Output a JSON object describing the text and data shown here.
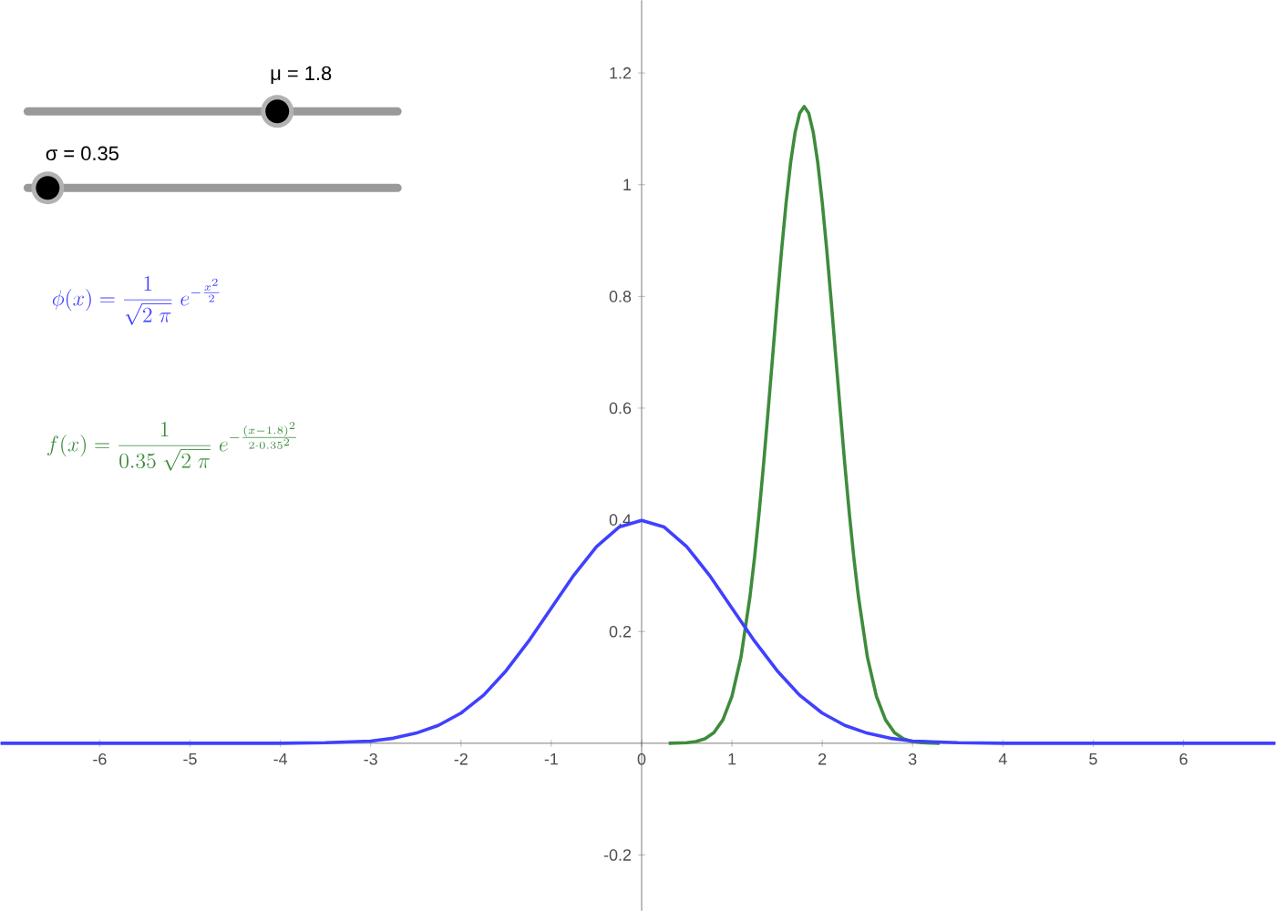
{
  "chart_data": {
    "type": "line",
    "xlim": [
      -7.1,
      7.02
    ],
    "ylim": [
      -0.3,
      1.33
    ],
    "xticks": [
      -6,
      -5,
      -4,
      -3,
      -2,
      -1,
      0,
      1,
      2,
      3,
      4,
      5,
      6
    ],
    "yticks": [
      -0.2,
      0.2,
      0.4,
      0.6,
      0.8,
      1,
      1.2
    ],
    "grid": false,
    "marker": "none",
    "line_style": "solid",
    "series": [
      {
        "color": "#4040ff",
        "x": [
          -7.1,
          -4,
          -3.5,
          -3,
          -2.75,
          -2.5,
          -2.25,
          -2,
          -1.75,
          -1.5,
          -1.25,
          -1,
          -0.75,
          -0.5,
          -0.25,
          0,
          0.25,
          0.5,
          0.75,
          1,
          1.25,
          1.5,
          1.75,
          2,
          2.25,
          2.5,
          2.75,
          3,
          3.5,
          4,
          7.02
        ],
        "values": [
          0,
          0,
          0.001,
          0.004,
          0.009,
          0.018,
          0.032,
          0.054,
          0.086,
          0.13,
          0.183,
          0.242,
          0.301,
          0.352,
          0.387,
          0.399,
          0.387,
          0.352,
          0.301,
          0.242,
          0.183,
          0.13,
          0.086,
          0.054,
          0.032,
          0.018,
          0.009,
          0.004,
          0.001,
          0,
          0
        ]
      },
      {
        "color": "#3d8c3d",
        "x": [
          0.3,
          0.5,
          0.6,
          0.7,
          0.8,
          0.9,
          1.0,
          1.1,
          1.2,
          1.25,
          1.3,
          1.35,
          1.4,
          1.45,
          1.5,
          1.55,
          1.6,
          1.65,
          1.7,
          1.75,
          1.8,
          1.85,
          1.9,
          1.95,
          2.0,
          2.05,
          2.1,
          2.15,
          2.2,
          2.25,
          2.3,
          2.35,
          2.4,
          2.5,
          2.6,
          2.7,
          2.8,
          2.9,
          3.0,
          3.1,
          3.3
        ],
        "values": [
          0,
          0.001,
          0.003,
          0.008,
          0.019,
          0.042,
          0.084,
          0.154,
          0.263,
          0.332,
          0.411,
          0.499,
          0.594,
          0.691,
          0.79,
          0.883,
          0.968,
          1.04,
          1.094,
          1.128,
          1.14,
          1.128,
          1.094,
          1.04,
          0.968,
          0.883,
          0.79,
          0.691,
          0.594,
          0.499,
          0.411,
          0.332,
          0.263,
          0.154,
          0.084,
          0.042,
          0.019,
          0.008,
          0.003,
          0.001,
          0
        ]
      }
    ],
    "annotations": [
      "μ = 1.8",
      "σ = 0.35",
      "\\phi(x) = \\frac{1}{\\sqrt{2\\;\\pi}}\\;e^{-\\frac{x^2}{2}}",
      "f(x) = \\frac{1}{0.35\\;\\sqrt{2\\;\\pi}}\\;e^{-\\frac{(x-1.8)^2}{2\\cdot 0.35^2}}"
    ]
  }
}
